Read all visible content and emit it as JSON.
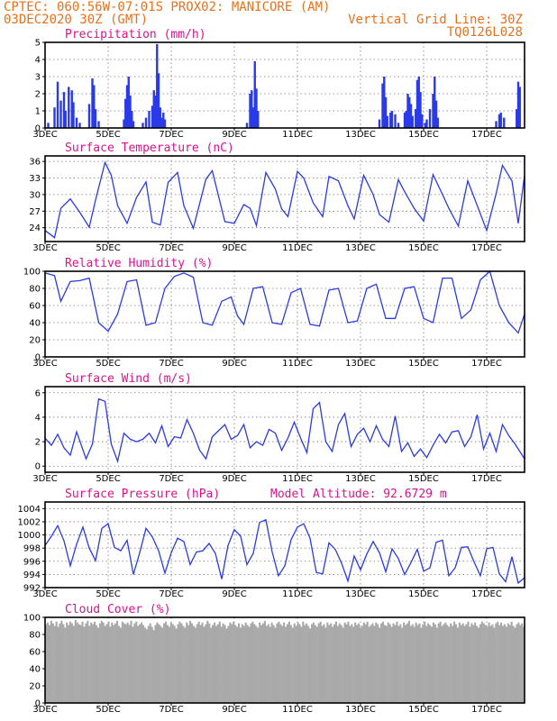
{
  "header": {
    "line1": "CPTEC:   060:56W-07:01S  PROX02: MANICORE (AM)",
    "line2_left": "03DEC2020 30Z (GMT)",
    "line2_right": "Vertical Grid Line: 30Z",
    "line3_right": "TQ0126L028"
  },
  "colors": {
    "header": "#e8701a",
    "title": "#e0108a",
    "series": "#2a3ae6",
    "bars": "#2a3ae6",
    "cloud": "#a9a9a9"
  },
  "x_ticks": [
    "3DEC",
    "5DEC",
    "7DEC",
    "9DEC",
    "11DEC",
    "13DEC",
    "15DEC",
    "17DEC"
  ],
  "x_range_days": [
    0,
    15.2
  ],
  "chart_data": [
    {
      "id": "precip",
      "type": "bar",
      "title": "Precipitation (mm/h)",
      "ylim": [
        0,
        5
      ],
      "yticks": [
        0,
        1,
        2,
        3,
        4,
        5
      ],
      "events": [
        {
          "x": 0.1,
          "v": 0.3
        },
        {
          "x": 0.3,
          "v": 1.2
        },
        {
          "x": 0.4,
          "v": 2.7
        },
        {
          "x": 0.5,
          "v": 1.6
        },
        {
          "x": 0.6,
          "v": 2.1
        },
        {
          "x": 0.65,
          "v": 1.0
        },
        {
          "x": 0.75,
          "v": 2.4
        },
        {
          "x": 0.85,
          "v": 2.2
        },
        {
          "x": 0.9,
          "v": 1.5
        },
        {
          "x": 1.0,
          "v": 0.6
        },
        {
          "x": 1.1,
          "v": 0.3
        },
        {
          "x": 1.4,
          "v": 1.4
        },
        {
          "x": 1.5,
          "v": 2.9
        },
        {
          "x": 1.55,
          "v": 2.5
        },
        {
          "x": 1.6,
          "v": 1.1
        },
        {
          "x": 1.7,
          "v": 0.4
        },
        {
          "x": 2.5,
          "v": 0.5
        },
        {
          "x": 2.55,
          "v": 1.7
        },
        {
          "x": 2.6,
          "v": 2.5
        },
        {
          "x": 2.65,
          "v": 3.0
        },
        {
          "x": 2.7,
          "v": 1.9
        },
        {
          "x": 2.75,
          "v": 1.0
        },
        {
          "x": 2.8,
          "v": 0.4
        },
        {
          "x": 3.1,
          "v": 0.3
        },
        {
          "x": 3.2,
          "v": 0.6
        },
        {
          "x": 3.3,
          "v": 1.0
        },
        {
          "x": 3.4,
          "v": 1.3
        },
        {
          "x": 3.45,
          "v": 2.2
        },
        {
          "x": 3.5,
          "v": 1.9
        },
        {
          "x": 3.55,
          "v": 4.9
        },
        {
          "x": 3.6,
          "v": 3.2
        },
        {
          "x": 3.65,
          "v": 1.2
        },
        {
          "x": 3.7,
          "v": 0.6
        },
        {
          "x": 3.75,
          "v": 0.9
        },
        {
          "x": 3.8,
          "v": 0.5
        },
        {
          "x": 6.4,
          "v": 0.3
        },
        {
          "x": 6.5,
          "v": 2.0
        },
        {
          "x": 6.55,
          "v": 2.2
        },
        {
          "x": 6.6,
          "v": 1.2
        },
        {
          "x": 6.65,
          "v": 3.9
        },
        {
          "x": 6.7,
          "v": 2.3
        },
        {
          "x": 6.75,
          "v": 1.0
        },
        {
          "x": 10.6,
          "v": 0.5
        },
        {
          "x": 10.7,
          "v": 2.6
        },
        {
          "x": 10.75,
          "v": 3.0
        },
        {
          "x": 10.8,
          "v": 1.8
        },
        {
          "x": 10.85,
          "v": 0.7
        },
        {
          "x": 10.95,
          "v": 0.9
        },
        {
          "x": 11.0,
          "v": 1.0
        },
        {
          "x": 11.1,
          "v": 0.8
        },
        {
          "x": 11.2,
          "v": 0.3
        },
        {
          "x": 11.4,
          "v": 0.9
        },
        {
          "x": 11.45,
          "v": 1.0
        },
        {
          "x": 11.5,
          "v": 2.0
        },
        {
          "x": 11.55,
          "v": 1.8
        },
        {
          "x": 11.6,
          "v": 1.4
        },
        {
          "x": 11.65,
          "v": 0.7
        },
        {
          "x": 11.75,
          "v": 1.1
        },
        {
          "x": 11.8,
          "v": 2.8
        },
        {
          "x": 11.85,
          "v": 3.0
        },
        {
          "x": 11.9,
          "v": 2.1
        },
        {
          "x": 11.95,
          "v": 0.8
        },
        {
          "x": 12.05,
          "v": 0.3
        },
        {
          "x": 12.1,
          "v": 0.5
        },
        {
          "x": 12.2,
          "v": 1.1
        },
        {
          "x": 12.3,
          "v": 2.0
        },
        {
          "x": 12.35,
          "v": 3.0
        },
        {
          "x": 12.4,
          "v": 1.6
        },
        {
          "x": 12.45,
          "v": 0.6
        },
        {
          "x": 14.3,
          "v": 0.4
        },
        {
          "x": 14.4,
          "v": 0.8
        },
        {
          "x": 14.45,
          "v": 0.9
        },
        {
          "x": 14.55,
          "v": 0.6
        },
        {
          "x": 14.95,
          "v": 1.1
        },
        {
          "x": 15.0,
          "v": 2.7
        },
        {
          "x": 15.05,
          "v": 2.4
        }
      ]
    },
    {
      "id": "temp",
      "type": "line",
      "title": "Surface Temperature (nC)",
      "ylim": [
        21.5,
        37
      ],
      "yticks": [
        24,
        27,
        30,
        33,
        36
      ],
      "ytick_labels": [
        "24",
        "27",
        "30",
        "33",
        "36"
      ],
      "x": [
        0,
        0.3,
        0.5,
        0.8,
        1.1,
        1.4,
        1.6,
        1.9,
        2.1,
        2.3,
        2.6,
        2.9,
        3.2,
        3.4,
        3.65,
        3.9,
        4.2,
        4.4,
        4.7,
        5.1,
        5.3,
        5.7,
        6.0,
        6.3,
        6.5,
        6.7,
        7.0,
        7.3,
        7.5,
        7.7,
        8.0,
        8.2,
        8.5,
        8.8,
        9.0,
        9.3,
        9.6,
        9.8,
        10.1,
        10.4,
        10.6,
        10.9,
        11.2,
        11.4,
        11.7,
        12.0,
        12.3,
        12.6,
        12.8,
        13.1,
        13.4,
        13.7,
        14.0,
        14.3,
        14.5,
        14.8,
        15.0,
        15.2
      ],
      "values": [
        23.5,
        22.2,
        27.5,
        29.2,
        26.8,
        24.1,
        29.0,
        35.8,
        33.5,
        28.0,
        24.8,
        29.5,
        32.3,
        25.0,
        24.5,
        32.2,
        34.0,
        28.0,
        23.9,
        32.8,
        34.3,
        25.1,
        24.8,
        28.2,
        27.5,
        24.4,
        34.0,
        31.0,
        27.4,
        26.0,
        34.2,
        33.0,
        28.5,
        26.0,
        33.3,
        32.5,
        28.0,
        25.6,
        33.5,
        30.0,
        26.4,
        25.0,
        32.7,
        30.5,
        27.5,
        25.2,
        33.6,
        30.0,
        27.5,
        24.3,
        32.5,
        28.0,
        23.5,
        30.2,
        35.3,
        32.5,
        24.8,
        33.5
      ]
    },
    {
      "id": "rh",
      "type": "line",
      "title": "Relative Humidity (%)",
      "ylim": [
        0,
        100
      ],
      "yticks": [
        0,
        20,
        40,
        60,
        80,
        100
      ],
      "x": [
        0,
        0.3,
        0.5,
        0.8,
        1.1,
        1.4,
        1.7,
        2.0,
        2.3,
        2.6,
        2.9,
        3.2,
        3.5,
        3.8,
        4.1,
        4.4,
        4.7,
        5.0,
        5.3,
        5.6,
        5.9,
        6.1,
        6.3,
        6.6,
        6.9,
        7.2,
        7.5,
        7.8,
        8.1,
        8.4,
        8.7,
        9.0,
        9.3,
        9.6,
        9.9,
        10.2,
        10.5,
        10.8,
        11.1,
        11.4,
        11.7,
        12.0,
        12.3,
        12.6,
        12.9,
        13.2,
        13.5,
        13.8,
        14.1,
        14.4,
        14.7,
        15.0,
        15.2
      ],
      "values": [
        98,
        95,
        65,
        88,
        89,
        92,
        40,
        30,
        50,
        88,
        90,
        37,
        40,
        80,
        94,
        98,
        93,
        40,
        37,
        65,
        70,
        48,
        38,
        80,
        82,
        40,
        38,
        75,
        80,
        38,
        36,
        78,
        80,
        40,
        42,
        80,
        85,
        45,
        45,
        80,
        82,
        45,
        40,
        92,
        92,
        45,
        55,
        90,
        100,
        60,
        40,
        28,
        50
      ]
    },
    {
      "id": "wind",
      "type": "line",
      "title": "Surface Wind (m/s)",
      "ylim": [
        -0.5,
        6.5
      ],
      "yticks": [
        0,
        2,
        4,
        6
      ],
      "x": [
        0,
        0.2,
        0.4,
        0.6,
        0.8,
        1.0,
        1.3,
        1.5,
        1.7,
        1.9,
        2.1,
        2.3,
        2.5,
        2.7,
        2.9,
        3.1,
        3.3,
        3.5,
        3.7,
        3.9,
        4.1,
        4.3,
        4.5,
        4.7,
        4.9,
        5.1,
        5.3,
        5.5,
        5.7,
        5.9,
        6.1,
        6.3,
        6.5,
        6.7,
        6.9,
        7.1,
        7.3,
        7.5,
        7.7,
        7.9,
        8.1,
        8.3,
        8.5,
        8.7,
        8.9,
        9.1,
        9.3,
        9.5,
        9.7,
        9.9,
        10.1,
        10.3,
        10.5,
        10.7,
        10.9,
        11.1,
        11.3,
        11.5,
        11.7,
        11.9,
        12.1,
        12.3,
        12.5,
        12.7,
        12.9,
        13.1,
        13.3,
        13.5,
        13.7,
        13.9,
        14.1,
        14.3,
        14.5,
        14.7,
        14.9,
        15.2
      ],
      "values": [
        2.3,
        1.7,
        2.6,
        1.5,
        0.9,
        2.8,
        0.6,
        1.8,
        5.5,
        5.3,
        1.8,
        0.4,
        2.7,
        2.2,
        2.0,
        2.2,
        2.7,
        1.9,
        3.3,
        1.6,
        2.4,
        2.3,
        3.8,
        2.7,
        1.3,
        0.6,
        2.4,
        2.9,
        3.4,
        2.2,
        2.5,
        3.4,
        1.5,
        2.0,
        1.7,
        3.0,
        2.7,
        1.3,
        2.3,
        3.6,
        2.3,
        1.1,
        4.7,
        5.2,
        2.0,
        1.2,
        3.4,
        4.3,
        1.6,
        2.6,
        3.1,
        2.0,
        3.3,
        2.2,
        1.6,
        4.1,
        1.2,
        1.9,
        0.8,
        1.4,
        0.7,
        1.7,
        2.6,
        1.9,
        2.8,
        2.9,
        1.6,
        2.4,
        4.2,
        1.4,
        2.7,
        1.2,
        3.4,
        2.5,
        1.8,
        0.6
      ]
    },
    {
      "id": "press",
      "type": "line",
      "title": "Surface Pressure (hPa)",
      "subtitle": "Model Altitude: 92.6729 m",
      "ylim": [
        992,
        1005
      ],
      "yticks": [
        992,
        994,
        996,
        998,
        1000,
        1002,
        1004
      ],
      "x": [
        0,
        0.2,
        0.4,
        0.6,
        0.8,
        1.0,
        1.2,
        1.4,
        1.6,
        1.8,
        2.0,
        2.2,
        2.4,
        2.6,
        2.8,
        3.0,
        3.2,
        3.4,
        3.6,
        3.8,
        4.0,
        4.2,
        4.4,
        4.6,
        4.8,
        5.0,
        5.2,
        5.4,
        5.6,
        5.8,
        6.0,
        6.2,
        6.4,
        6.6,
        6.8,
        7.0,
        7.2,
        7.4,
        7.6,
        7.8,
        8.0,
        8.2,
        8.4,
        8.6,
        8.8,
        9.0,
        9.2,
        9.4,
        9.6,
        9.8,
        10.0,
        10.2,
        10.4,
        10.6,
        10.8,
        11.0,
        11.2,
        11.4,
        11.6,
        11.8,
        12.0,
        12.2,
        12.4,
        12.6,
        12.8,
        13.0,
        13.2,
        13.4,
        13.6,
        13.8,
        14.0,
        14.2,
        14.4,
        14.6,
        14.8,
        15.0,
        15.2
      ],
      "values": [
        998.4,
        999.8,
        1001.4,
        999.1,
        995.3,
        998.6,
        1001.2,
        998.0,
        996.1,
        1001.0,
        1001.7,
        998.1,
        997.6,
        999.2,
        994.0,
        997.3,
        1001.0,
        999.7,
        997.6,
        994.2,
        997.3,
        999.5,
        999.0,
        995.5,
        997.4,
        997.6,
        998.7,
        997.2,
        993.3,
        998.4,
        1000.8,
        999.8,
        995.5,
        997.2,
        1001.9,
        1002.3,
        997.4,
        993.8,
        995.3,
        999.3,
        1001.2,
        1001.7,
        999.5,
        994.3,
        994.1,
        998.8,
        997.8,
        995.7,
        993.0,
        996.8,
        994.7,
        997.1,
        999.0,
        997.3,
        994.4,
        997.9,
        996.4,
        994.0,
        995.8,
        997.8,
        994.5,
        995.0,
        998.9,
        999.2,
        993.8,
        995.0,
        998.1,
        998.2,
        995.9,
        993.8,
        997.9,
        998.1,
        994.1,
        992.9,
        996.7,
        992.7,
        993.5
      ]
    },
    {
      "id": "cloud",
      "type": "bar",
      "title": "Cloud Cover (%)",
      "ylim": [
        0,
        100
      ],
      "yticks": [
        0,
        20,
        40,
        60,
        80,
        100
      ],
      "values": [
        92,
        94,
        91,
        96,
        93,
        90,
        95,
        89,
        93,
        96,
        92,
        88,
        94,
        91,
        95,
        93,
        90,
        97,
        94,
        92,
        91,
        95,
        89,
        93,
        96,
        90,
        94,
        92,
        95,
        91,
        88,
        93,
        96,
        94,
        90,
        92,
        95,
        89,
        94,
        91,
        93,
        96,
        90,
        88,
        95,
        93,
        92,
        94,
        91,
        96,
        89,
        93,
        95,
        90,
        92,
        94,
        91,
        88,
        86,
        90,
        93,
        89,
        85,
        91,
        94,
        92,
        90,
        88,
        93,
        95,
        91,
        89,
        94,
        92,
        90,
        87,
        92,
        95,
        93,
        90,
        88,
        94,
        91,
        96,
        93,
        90,
        88,
        92,
        95,
        91,
        94,
        89,
        92,
        96,
        93,
        88,
        91,
        94,
        90,
        92,
        95,
        89,
        93,
        91,
        87,
        90,
        94,
        92,
        95,
        91,
        89,
        93,
        88,
        92,
        90,
        94,
        91,
        89,
        93,
        95,
        92,
        90,
        88,
        94,
        91,
        93,
        96,
        90,
        92,
        89,
        94,
        91,
        88,
        93,
        95,
        92,
        90,
        94,
        89,
        92,
        95,
        91,
        88,
        93,
        90,
        94,
        92,
        89,
        95,
        91,
        93,
        90,
        87,
        92,
        94,
        91,
        89,
        93,
        95,
        90,
        92,
        88,
        94,
        91,
        93,
        89,
        92,
        95,
        90,
        93,
        91,
        88,
        94,
        92,
        95,
        90,
        92,
        89,
        94,
        91,
        93,
        88,
        90,
        94,
        92,
        95,
        89,
        91,
        93,
        90,
        94,
        92,
        88,
        93,
        95,
        91,
        90,
        94,
        92,
        89,
        93,
        91,
        95,
        90,
        92,
        88,
        94,
        91,
        93,
        96,
        90,
        92,
        89,
        94,
        91,
        93,
        88,
        92,
        95,
        90,
        93,
        91,
        89,
        94,
        92,
        88,
        93,
        95,
        90,
        92,
        94,
        91,
        89,
        93,
        90,
        95,
        92,
        88,
        94,
        91,
        93,
        90,
        92,
        95,
        89,
        93,
        91,
        94,
        90,
        88,
        92,
        95,
        93,
        91,
        89,
        94,
        90,
        92,
        88,
        93,
        95,
        91,
        94,
        90,
        92,
        89,
        93,
        91,
        95,
        90,
        88,
        92,
        94,
        91,
        93,
        89
      ]
    }
  ]
}
